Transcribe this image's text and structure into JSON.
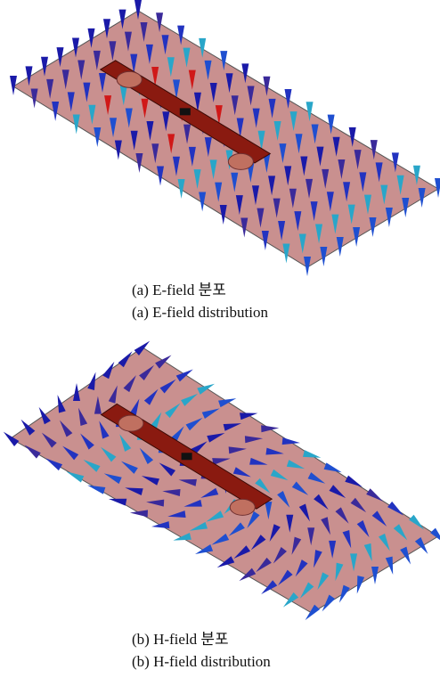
{
  "figures": [
    {
      "caption_ko": "(a) E-field 분포",
      "caption_en": "(a) E-field distribution"
    },
    {
      "caption_ko": "(b) H-field 분포",
      "caption_en": "(b) H-field distribution"
    }
  ]
}
